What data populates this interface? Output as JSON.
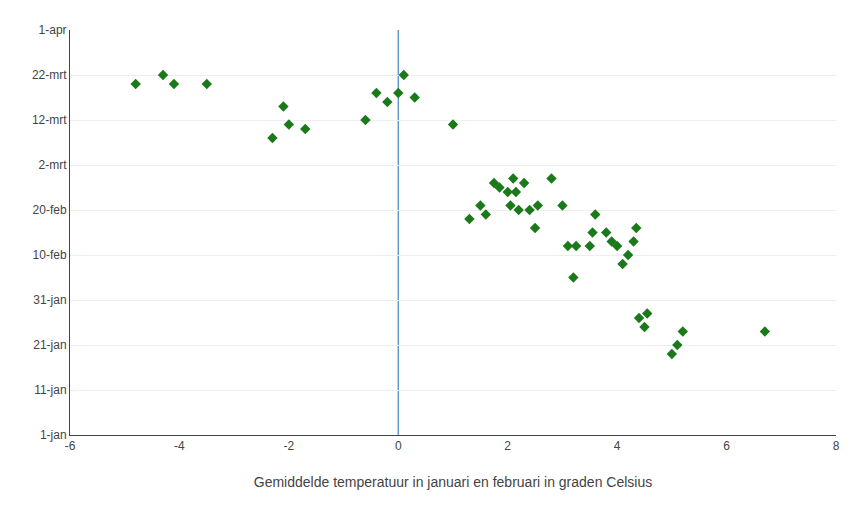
{
  "chart_data": {
    "type": "scatter",
    "x": [
      -4.8,
      -4.3,
      -4.1,
      -3.5,
      -2.1,
      -2.0,
      -2.3,
      -1.7,
      -0.6,
      -0.4,
      -0.2,
      0.0,
      0.1,
      0.3,
      1.0,
      1.3,
      1.5,
      1.6,
      1.75,
      1.85,
      2.0,
      2.05,
      2.1,
      2.15,
      2.2,
      2.3,
      2.4,
      2.5,
      2.55,
      2.8,
      3.0,
      3.1,
      3.2,
      3.25,
      3.5,
      3.55,
      3.6,
      3.8,
      3.9,
      4.0,
      4.1,
      4.2,
      4.3,
      4.35,
      4.4,
      4.5,
      4.55,
      5.0,
      5.1,
      5.2,
      6.7
    ],
    "values": [
      79,
      81,
      79,
      79,
      74,
      70,
      67,
      69,
      71,
      77,
      75,
      77,
      81,
      76,
      70,
      49,
      52,
      50,
      57,
      56,
      55,
      52,
      58,
      55,
      51,
      57,
      51,
      47,
      52,
      58,
      52,
      43,
      36,
      43,
      43,
      46,
      50,
      46,
      44,
      43,
      39,
      41,
      44,
      47,
      27,
      25,
      28,
      19,
      21,
      24,
      24
    ],
    "color": "#1a7a1a",
    "marker": "diamond",
    "xlabel": "Gemiddelde temperatuur in januari en februari in graden Celsius",
    "xlim": [
      -6,
      8
    ],
    "xticks": [
      -6,
      -4,
      -2,
      0,
      2,
      4,
      6,
      8
    ],
    "ylim": [
      1,
      91
    ],
    "yticks": [
      {
        "value": 1,
        "label": "1-jan"
      },
      {
        "value": 11,
        "label": "11-jan"
      },
      {
        "value": 21,
        "label": "21-jan"
      },
      {
        "value": 31,
        "label": "31-jan"
      },
      {
        "value": 41,
        "label": "10-feb"
      },
      {
        "value": 51,
        "label": "20-feb"
      },
      {
        "value": 61,
        "label": "2-mrt"
      },
      {
        "value": 71,
        "label": "12-mrt"
      },
      {
        "value": 81,
        "label": "22-mrt"
      },
      {
        "value": 91,
        "label": "1-apr"
      }
    ],
    "grid": "y",
    "vline": {
      "value": 0,
      "color": "#6699cc"
    }
  }
}
